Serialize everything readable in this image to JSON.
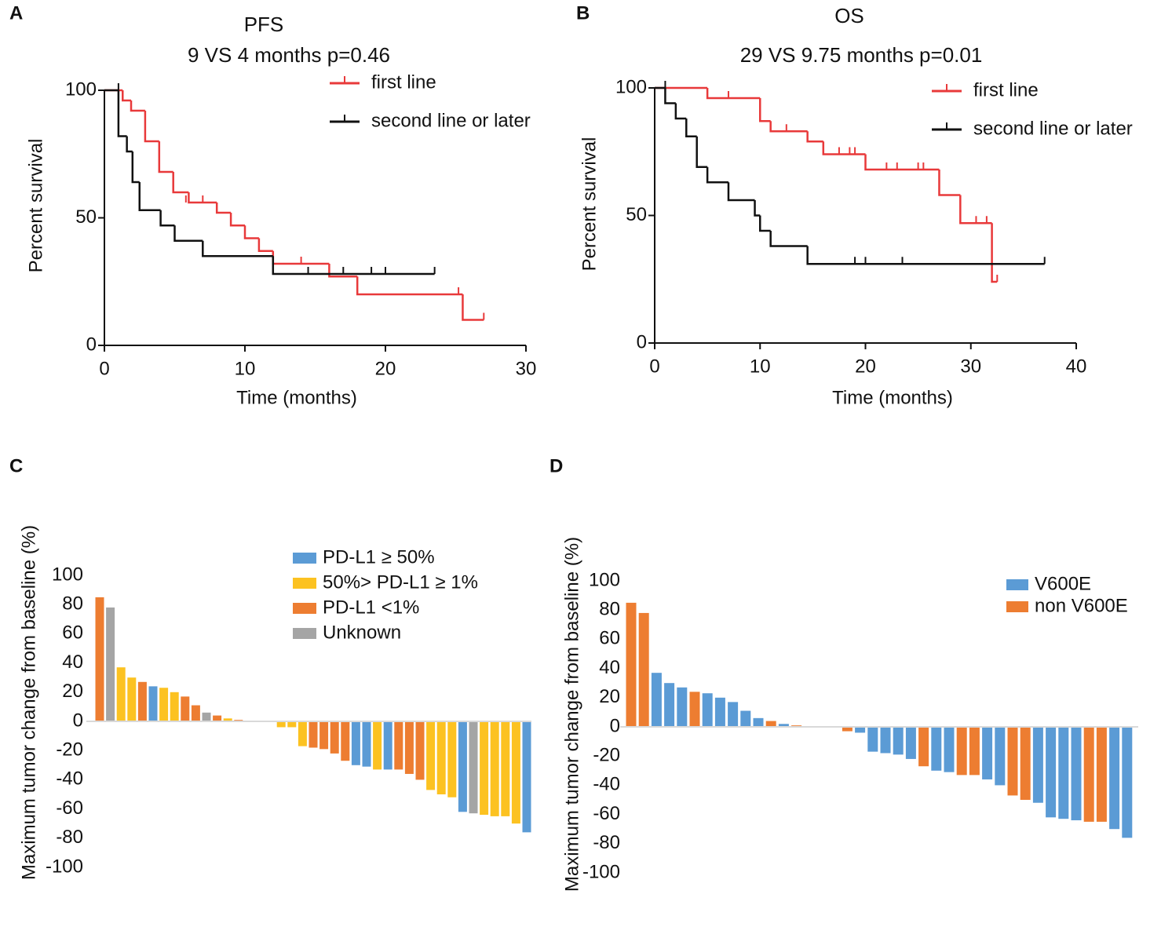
{
  "chart_data": [
    {
      "type": "km",
      "panel": "A",
      "title": "PFS",
      "subtitle": "9 VS 4 months p=0.46",
      "xlabel": "Time (months)",
      "ylabel": "Percent survival",
      "xlim": [
        0,
        30
      ],
      "xticks": [
        0,
        10,
        20,
        30
      ],
      "ylim": [
        0,
        100
      ],
      "yticks": [
        0,
        50,
        100
      ],
      "series": [
        {
          "name": "first line",
          "color": "#e8393a",
          "x": [
            0,
            1.3,
            1.9,
            2.9,
            3.9,
            4.9,
            6,
            8,
            9,
            10,
            11,
            12,
            16,
            18,
            25.5,
            27
          ],
          "values": [
            100,
            96,
            92,
            80,
            68,
            60,
            56,
            52,
            47,
            42,
            37,
            32,
            27,
            20,
            10,
            10
          ],
          "censored_x": [
            5.8,
            7,
            14,
            25.2,
            27
          ],
          "censored_y": [
            56,
            56,
            32,
            20,
            10
          ]
        },
        {
          "name": "second line or later",
          "color": "#111111",
          "x": [
            0,
            1,
            1.6,
            2,
            2.5,
            4,
            5,
            7,
            12,
            23.5
          ],
          "values": [
            100,
            82,
            76,
            64,
            53,
            47,
            41,
            35,
            28,
            28
          ],
          "censored_x": [
            1,
            14.5,
            17,
            19,
            20,
            23.5
          ],
          "censored_y": [
            100,
            28,
            28,
            28,
            28,
            28
          ]
        }
      ]
    },
    {
      "type": "km",
      "panel": "B",
      "title": "OS",
      "subtitle": "29 VS 9.75 months p=0.01",
      "xlabel": "Time (months)",
      "ylabel": "Percent survival",
      "xlim": [
        0,
        40
      ],
      "xticks": [
        0,
        10,
        20,
        30,
        40
      ],
      "ylim": [
        0,
        100
      ],
      "yticks": [
        0,
        50,
        100
      ],
      "series": [
        {
          "name": "first line",
          "color": "#e8393a",
          "x": [
            0,
            5,
            10,
            11,
            14.5,
            16,
            20,
            27,
            29,
            32,
            32.5
          ],
          "values": [
            100,
            96,
            87,
            83,
            79,
            74,
            68,
            58,
            47,
            24,
            24
          ],
          "censored_x": [
            7,
            12.5,
            17.5,
            18.5,
            19,
            22,
            23,
            25,
            25.5,
            27,
            30.5,
            31.5,
            32.5
          ],
          "censored_y": [
            96,
            83,
            74,
            74,
            74,
            68,
            68,
            68,
            68,
            58,
            47,
            47,
            24
          ]
        },
        {
          "name": "second line or later",
          "color": "#111111",
          "x": [
            0,
            1,
            2,
            3,
            4,
            5,
            7,
            9.5,
            10,
            11,
            14.5,
            37
          ],
          "values": [
            100,
            94,
            88,
            81,
            69,
            63,
            56,
            50,
            44,
            38,
            31,
            31
          ],
          "censored_x": [
            1,
            19,
            20,
            23.5,
            37
          ],
          "censored_y": [
            100,
            31,
            31,
            31,
            31
          ]
        }
      ]
    },
    {
      "type": "waterfall",
      "panel": "C",
      "ylabel": "Maximum tumor change from baseline (%)",
      "ylim": [
        -100,
        100
      ],
      "yticks": [
        100,
        80,
        60,
        40,
        20,
        0,
        -20,
        -40,
        -60,
        -80,
        -100
      ],
      "legend": [
        {
          "name": "PD-L1 ≥ 50%",
          "color": "#5b9bd5"
        },
        {
          "name": "50%> PD-L1 ≥ 1%",
          "color": "#fcc221"
        },
        {
          "name": "PD-L1 <1%",
          "color": "#ed7d31"
        },
        {
          "name": "Unknown",
          "color": "#a5a5a5"
        }
      ],
      "values": [
        85,
        78,
        37,
        30,
        27,
        24,
        23,
        20,
        17,
        11,
        6,
        4,
        2,
        1,
        0.5,
        0.5,
        0,
        -4,
        -4,
        -17,
        -18,
        -19,
        -22,
        -27,
        -30,
        -31,
        -33,
        -33,
        -33,
        -36,
        -40,
        -47,
        -50,
        -52,
        -62,
        -63,
        -64,
        -65,
        -65,
        -70,
        -76
      ],
      "colors": [
        "#ed7d31",
        "#a5a5a5",
        "#fcc221",
        "#fcc221",
        "#ed7d31",
        "#5b9bd5",
        "#fcc221",
        "#fcc221",
        "#ed7d31",
        "#ed7d31",
        "#a5a5a5",
        "#ed7d31",
        "#fcc221",
        "#ed7d31",
        "#ed7d31",
        "#5b9bd5",
        "#5b9bd5",
        "#fcc221",
        "#fcc221",
        "#fcc221",
        "#ed7d31",
        "#ed7d31",
        "#ed7d31",
        "#ed7d31",
        "#5b9bd5",
        "#5b9bd5",
        "#fcc221",
        "#5b9bd5",
        "#ed7d31",
        "#ed7d31",
        "#ed7d31",
        "#fcc221",
        "#fcc221",
        "#fcc221",
        "#5b9bd5",
        "#a5a5a5",
        "#fcc221",
        "#fcc221",
        "#fcc221",
        "#fcc221",
        "#5b9bd5"
      ]
    },
    {
      "type": "waterfall",
      "panel": "D",
      "ylabel": "Maximum tumor change from baseline (%)",
      "ylim": [
        -100,
        100
      ],
      "yticks": [
        100,
        80,
        60,
        40,
        20,
        0,
        -20,
        -40,
        -60,
        -80,
        -100
      ],
      "legend": [
        {
          "name": "V600E",
          "color": "#5b9bd5"
        },
        {
          "name": "non V600E",
          "color": "#ed7d31"
        }
      ],
      "values": [
        85,
        78,
        37,
        30,
        27,
        24,
        23,
        20,
        17,
        11,
        6,
        4,
        2,
        1,
        0.5,
        0.5,
        0,
        -3,
        -4,
        -17,
        -18,
        -19,
        -22,
        -27,
        -30,
        -31,
        -33,
        -33,
        -36,
        -40,
        -47,
        -50,
        -52,
        -62,
        -63,
        -64,
        -65,
        -65,
        -70,
        -76
      ],
      "colors": [
        "#ed7d31",
        "#ed7d31",
        "#5b9bd5",
        "#5b9bd5",
        "#5b9bd5",
        "#ed7d31",
        "#5b9bd5",
        "#5b9bd5",
        "#5b9bd5",
        "#5b9bd5",
        "#5b9bd5",
        "#ed7d31",
        "#5b9bd5",
        "#ed7d31",
        "#5b9bd5",
        "#ed7d31",
        "#5b9bd5",
        "#ed7d31",
        "#5b9bd5",
        "#5b9bd5",
        "#5b9bd5",
        "#5b9bd5",
        "#5b9bd5",
        "#ed7d31",
        "#5b9bd5",
        "#5b9bd5",
        "#ed7d31",
        "#ed7d31",
        "#5b9bd5",
        "#5b9bd5",
        "#ed7d31",
        "#ed7d31",
        "#5b9bd5",
        "#5b9bd5",
        "#5b9bd5",
        "#5b9bd5",
        "#ed7d31",
        "#ed7d31",
        "#5b9bd5",
        "#5b9bd5"
      ]
    }
  ]
}
